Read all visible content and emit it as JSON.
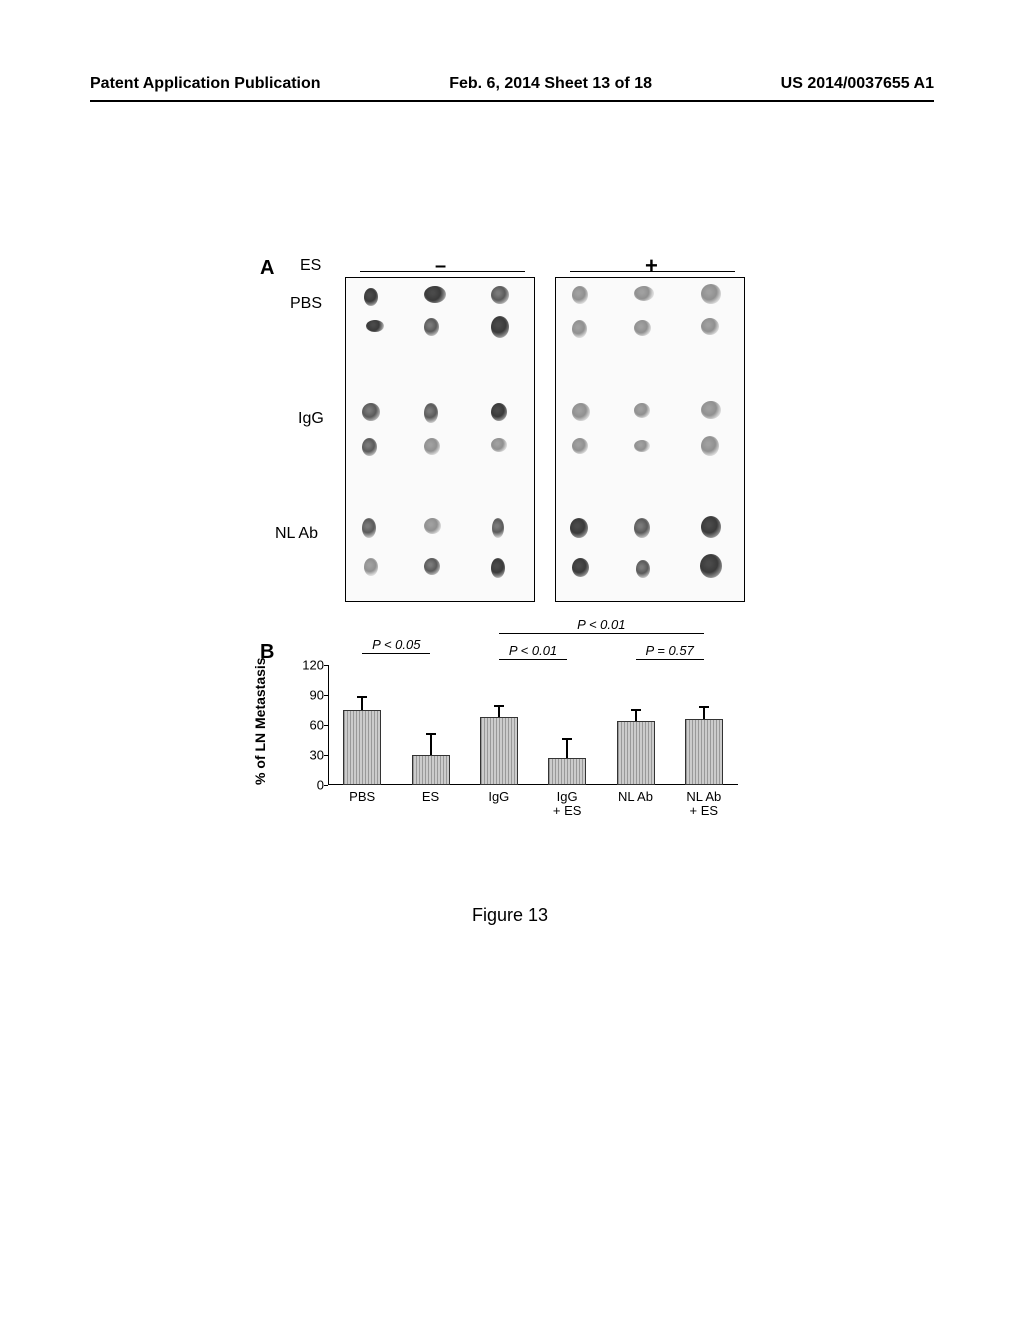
{
  "header": {
    "left": "Patent Application Publication",
    "center": "Feb. 6, 2014  Sheet 13 of 18",
    "right": "US 2014/0037655 A1"
  },
  "panelA": {
    "label": "A",
    "es_label": "ES",
    "minus": "–",
    "plus": "+",
    "rows": [
      "PBS",
      "IgG",
      "NL Ab"
    ]
  },
  "panelB": {
    "label": "B",
    "ylabel": "% of LN Metastasis",
    "ymax": 120,
    "ytick_step": 30,
    "yticks": [
      0,
      30,
      60,
      90,
      120
    ],
    "bars": [
      {
        "label": "PBS",
        "value": 75,
        "err": 12
      },
      {
        "label": "ES",
        "value": 30,
        "err": 20
      },
      {
        "label": "IgG",
        "value": 68,
        "err": 10
      },
      {
        "label": "IgG\n+ ES",
        "value": 27,
        "err": 18
      },
      {
        "label": "NL Ab",
        "value": 64,
        "err": 10
      },
      {
        "label": "NL Ab\n+ ES",
        "value": 66,
        "err": 11
      }
    ],
    "pvals": [
      {
        "text": "P < 0.05",
        "from": 0,
        "to": 1,
        "y": -8
      },
      {
        "text": "P < 0.01",
        "from": 2,
        "to": 3,
        "y": -2
      },
      {
        "text": "P = 0.57",
        "from": 4,
        "to": 5,
        "y": -2
      },
      {
        "text": "P < 0.01",
        "from": 2,
        "to": 5,
        "y": -28
      }
    ],
    "bar_color": "#b0b0b0",
    "grid_color": "#000000"
  },
  "figcaption": "Figure 13"
}
